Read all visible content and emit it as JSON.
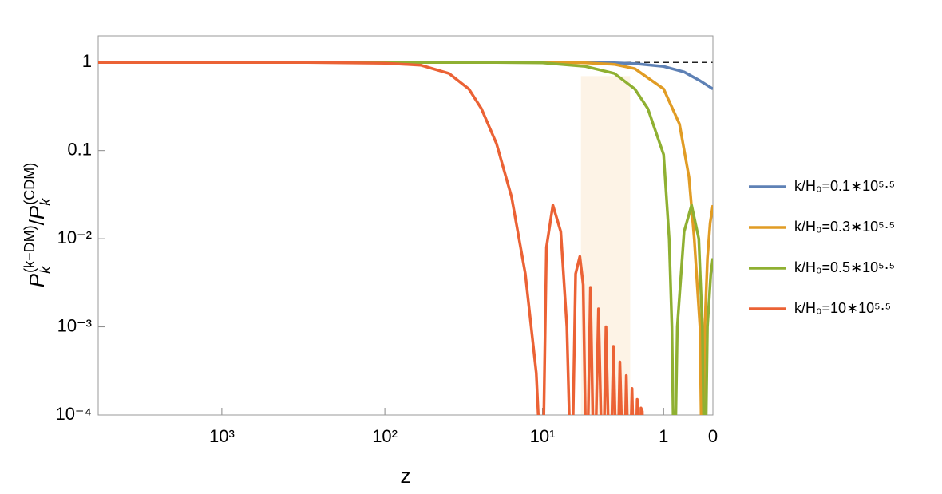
{
  "chart_data": {
    "type": "line",
    "x_label": "z",
    "y_label": [
      "P",
      "k",
      "(k−DM)",
      "/",
      "P",
      "k",
      "(CDM)"
    ],
    "x_scale": "log1p",
    "y_scale": "log",
    "xlim": [
      5700,
      0
    ],
    "ylim": [
      0.0001,
      2
    ],
    "xticks": [
      {
        "value": 1000,
        "label": "10³"
      },
      {
        "value": 100,
        "label": "10²"
      },
      {
        "value": 10,
        "label": "10¹"
      },
      1,
      0
    ],
    "yticks": [
      1,
      0.1,
      {
        "value": 0.01,
        "label": "10⁻²"
      },
      {
        "value": 0.001,
        "label": "10⁻³"
      },
      {
        "value": 0.0001,
        "label": "10⁻⁴"
      }
    ],
    "reference_line": 1,
    "shaded_region": {
      "x": [
        5.4,
        2.2
      ],
      "top": 0.7,
      "color": "#fdf3e6"
    },
    "series": [
      {
        "name": "k/H₀=0.1∗10⁵·⁵",
        "color": "#5e81b5",
        "x": [
          5700,
          100,
          10,
          5,
          3,
          2,
          1,
          0.5,
          0.2,
          0
        ],
        "values": [
          1,
          1,
          1,
          1,
          0.99,
          0.97,
          0.9,
          0.78,
          0.62,
          0.5
        ]
      },
      {
        "name": "k/H₀=0.3∗10⁵·⁵",
        "color": "#e19c24",
        "x": [
          5700,
          10,
          5,
          3,
          2,
          1,
          0.6,
          0.4,
          0.3,
          0.2,
          0.16,
          0.12,
          0.08,
          0.04,
          0
        ],
        "values": [
          1,
          1,
          0.99,
          0.95,
          0.85,
          0.5,
          0.2,
          0.05,
          0.01,
          0.001,
          1e-05,
          0.001,
          0.006,
          0.015,
          0.024
        ]
      },
      {
        "name": "k/H₀=0.5∗10⁵·⁵",
        "color": "#8fb032",
        "x": [
          5700,
          20,
          10,
          5,
          3,
          2,
          1.5,
          1,
          0.85,
          0.78,
          0.72,
          0.65,
          0.5,
          0.35,
          0.22,
          0.16,
          0.12,
          0.08,
          0.03,
          0
        ],
        "values": [
          1,
          1,
          0.99,
          0.9,
          0.75,
          0.5,
          0.3,
          0.09,
          0.01,
          0.001,
          1e-05,
          0.001,
          0.012,
          0.024,
          0.01,
          0.001,
          1e-05,
          0.001,
          0.004,
          0.006
        ]
      },
      {
        "name": "k/H₀=10∗10⁵·⁵",
        "color": "#eb6235",
        "x": [
          5700,
          1000,
          300,
          100,
          60,
          40,
          30,
          25,
          20,
          16,
          13,
          11,
          10,
          9.4,
          8.5,
          7.5,
          6.8,
          6.3,
          5.9,
          5.5,
          5.2,
          4.9,
          4.6,
          4.3,
          4.0,
          3.7,
          3.5,
          3.25,
          3.05,
          2.85,
          2.7,
          2.5,
          2.38,
          2.25,
          2.12,
          2.0,
          1.9,
          1.8,
          1.75,
          1.7,
          1.65
        ],
        "values": [
          1,
          1,
          0.999,
          0.98,
          0.93,
          0.75,
          0.5,
          0.3,
          0.12,
          0.03,
          0.004,
          0.0003,
          1e-05,
          0.008,
          0.024,
          0.012,
          0.001,
          1e-05,
          0.004,
          0.0063,
          0.003,
          1e-05,
          0.0028,
          1e-05,
          0.0016,
          1e-05,
          0.001,
          1e-05,
          0.0006,
          1e-05,
          0.0004,
          1e-05,
          0.00028,
          1e-05,
          0.0002,
          1e-05,
          0.00015,
          1e-05,
          0.00012,
          0.00011,
          1e-05
        ]
      }
    ]
  }
}
